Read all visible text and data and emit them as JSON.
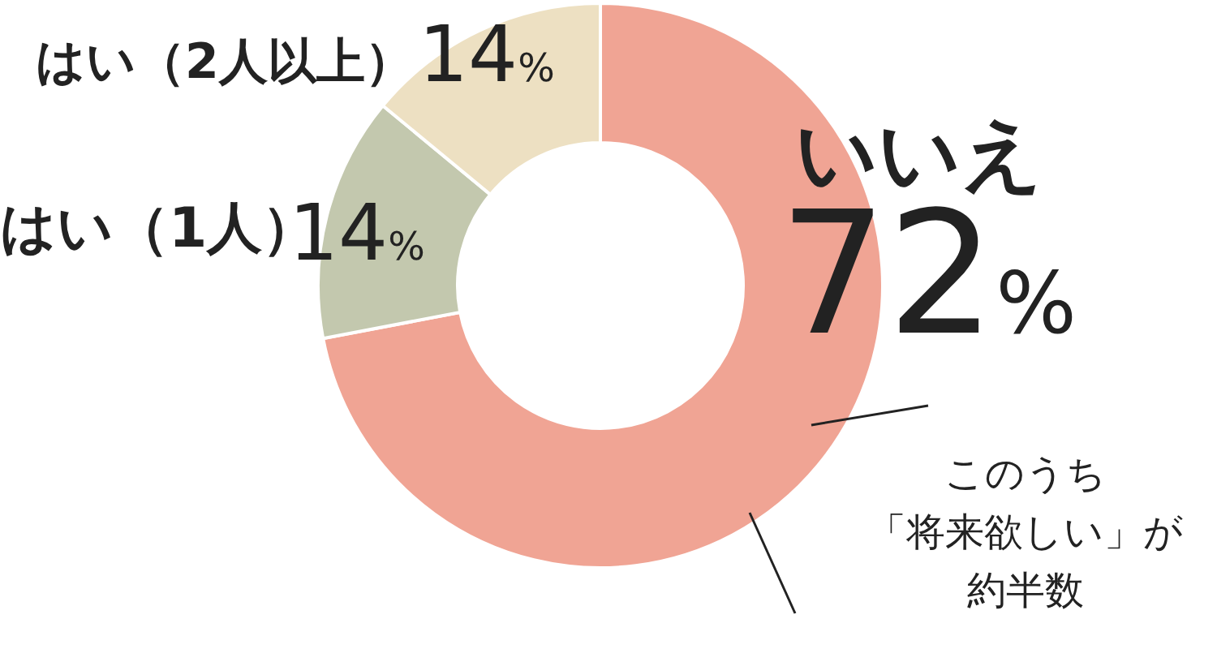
{
  "chart_data": {
    "type": "donut",
    "categories": [
      "いいえ",
      "はい（1人）",
      "はい（2人以上）"
    ],
    "values": [
      72,
      14,
      14
    ],
    "colors": [
      "#f0a494",
      "#c3c8ae",
      "#ede0c2"
    ],
    "value_labels": [
      "72%",
      "14%",
      "14%"
    ],
    "annotations": [
      "このうち",
      "「将来欲しい」が",
      "約半数"
    ]
  }
}
